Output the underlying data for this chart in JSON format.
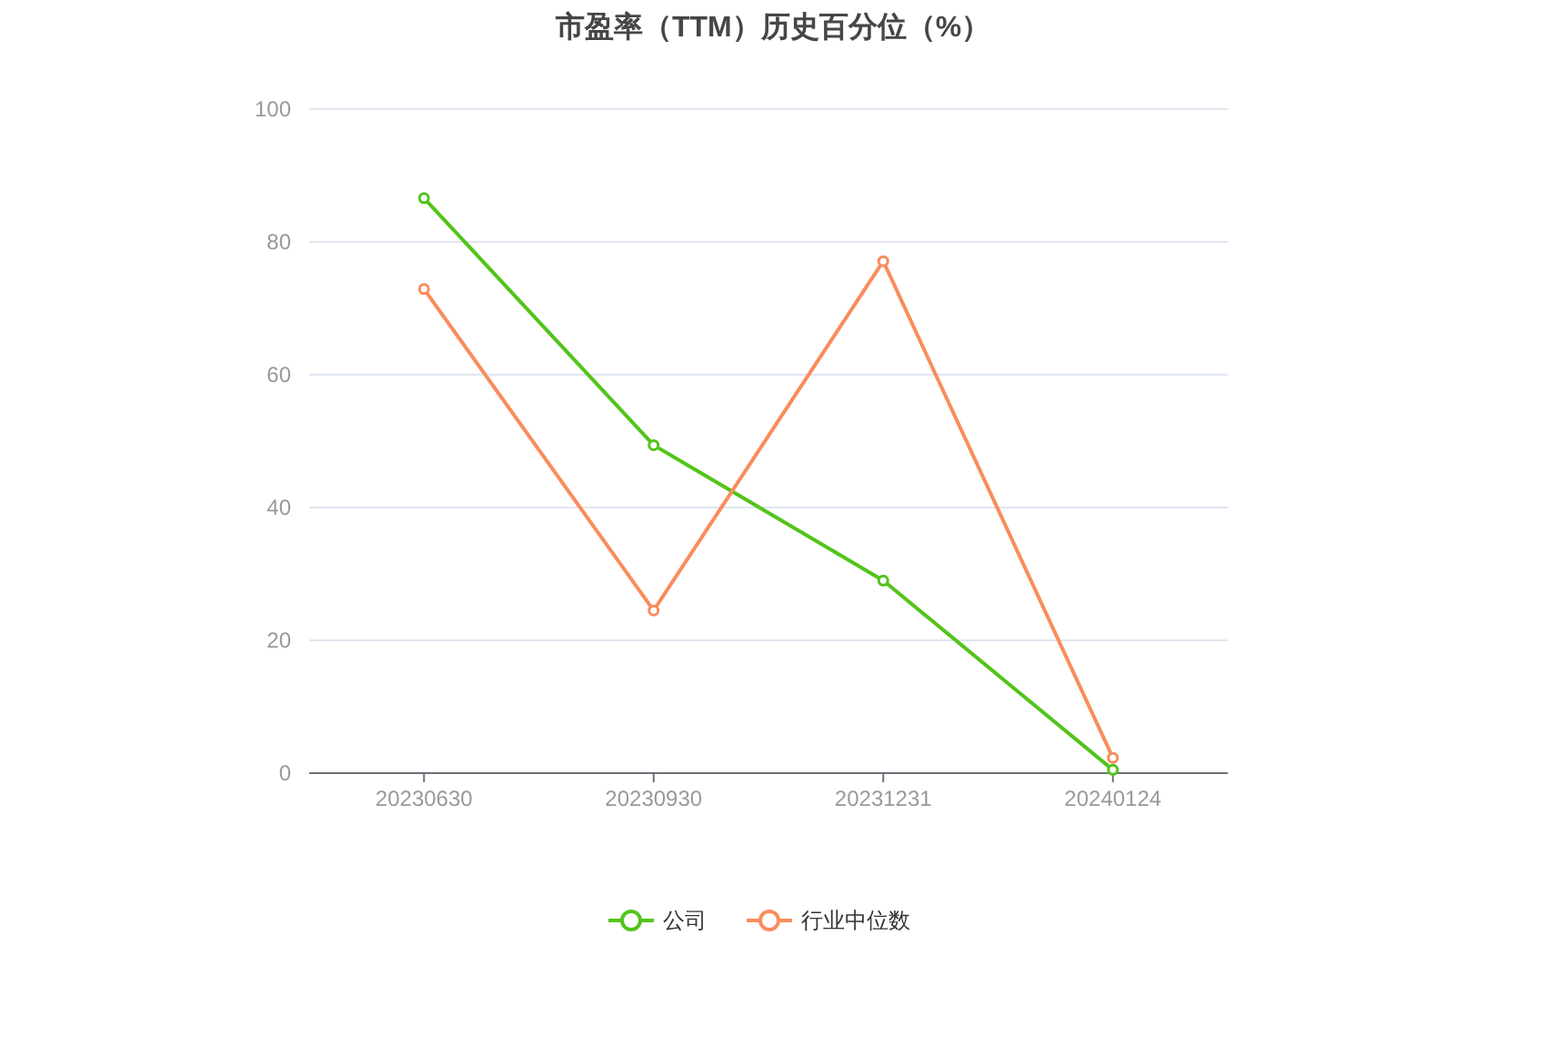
{
  "chart_data": {
    "type": "line",
    "title": "市盈率（TTM）历史百分位（%）",
    "categories": [
      "20230630",
      "20230930",
      "20231231",
      "20240124"
    ],
    "series": [
      {
        "name": "公司",
        "color": "#52c41a",
        "values": [
          86.6,
          49.4,
          29.0,
          0.5
        ]
      },
      {
        "name": "行业中位数",
        "color": "#fa8c5c",
        "values": [
          72.9,
          24.5,
          77.1,
          2.3
        ]
      }
    ],
    "ylim": [
      0,
      100
    ],
    "yticks": [
      0,
      20,
      40,
      60,
      80,
      100
    ],
    "grid": "y",
    "legend": "bottom",
    "marker": "circle",
    "line_style": "solid"
  }
}
